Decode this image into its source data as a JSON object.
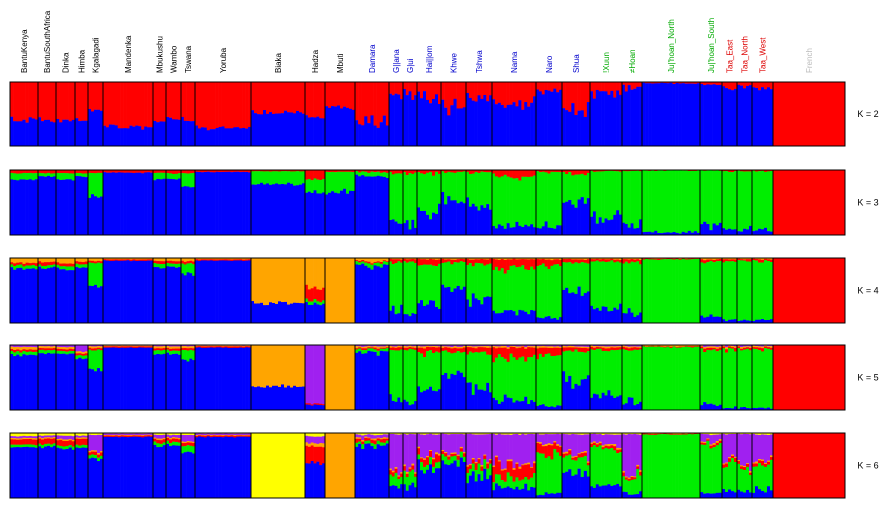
{
  "chart_data": {
    "type": "bar",
    "subtype": "stacked-admixture-proportions",
    "title": "",
    "xlabel": "",
    "ylabel": "",
    "ylim": [
      0,
      1
    ],
    "grid": false,
    "legend": "none",
    "populations": [
      {
        "name": "BantuKenya",
        "label_color": "#000000"
      },
      {
        "name": "BantuSouthAfrica",
        "label_color": "#000000"
      },
      {
        "name": "Dinka",
        "label_color": "#000000"
      },
      {
        "name": "Himba",
        "label_color": "#000000"
      },
      {
        "name": "Kgalagadi",
        "label_color": "#000000"
      },
      {
        "name": "Mandenka",
        "label_color": "#000000"
      },
      {
        "name": "Mbukushu",
        "label_color": "#000000"
      },
      {
        "name": "Wambo",
        "label_color": "#000000"
      },
      {
        "name": "Tswana",
        "label_color": "#000000"
      },
      {
        "name": "Yoruba",
        "label_color": "#000000"
      },
      {
        "name": "Biaka",
        "label_color": "#000000"
      },
      {
        "name": "Hadza",
        "label_color": "#000000"
      },
      {
        "name": "Mbuti",
        "label_color": "#000000"
      },
      {
        "name": "Damara",
        "label_color": "#0000cc"
      },
      {
        "name": "G||ana",
        "label_color": "#0000cc"
      },
      {
        "name": "G|ui",
        "label_color": "#0000cc"
      },
      {
        "name": "Hai||om",
        "label_color": "#0000cc"
      },
      {
        "name": "Khwe",
        "label_color": "#0000cc"
      },
      {
        "name": "Tshwa",
        "label_color": "#0000cc"
      },
      {
        "name": "Nama",
        "label_color": "#0000cc"
      },
      {
        "name": "Naro",
        "label_color": "#0000cc"
      },
      {
        "name": "Shua",
        "label_color": "#0000cc"
      },
      {
        "name": "!Xuun",
        "label_color": "#00aa00"
      },
      {
        "name": "≠Hoan",
        "label_color": "#00aa00"
      },
      {
        "name": "Ju|'hoan_North",
        "label_color": "#00aa00"
      },
      {
        "name": "Ju|'hoan_South",
        "label_color": "#00aa00"
      },
      {
        "name": "Taa_East",
        "label_color": "#dd0000"
      },
      {
        "name": "Taa_North",
        "label_color": "#dd0000"
      },
      {
        "name": "Taa_West",
        "label_color": "#dd0000"
      },
      {
        "name": "French",
        "label_color": "#bbbbbb"
      }
    ],
    "cluster_colors": {
      "blue": "#0000ff",
      "red": "#ff0000",
      "green": "#00ee00",
      "orange": "#ffa500",
      "purple": "#a020f0",
      "yellow": "#ffff00"
    },
    "panels": [
      {
        "k_label": "K = 2",
        "clusters": [
          "red",
          "blue"
        ],
        "pop_values": [
          [
            0.6,
            0.4
          ],
          [
            0.6,
            0.4
          ],
          [
            0.62,
            0.38
          ],
          [
            0.6,
            0.4
          ],
          [
            0.45,
            0.55
          ],
          [
            0.7,
            0.3
          ],
          [
            0.62,
            0.38
          ],
          [
            0.55,
            0.45
          ],
          [
            0.6,
            0.4
          ],
          [
            0.72,
            0.28
          ],
          [
            0.48,
            0.52
          ],
          [
            0.55,
            0.45
          ],
          [
            0.4,
            0.6
          ],
          [
            0.65,
            0.35
          ],
          [
            0.2,
            0.8
          ],
          [
            0.2,
            0.8
          ],
          [
            0.25,
            0.75
          ],
          [
            0.4,
            0.6
          ],
          [
            0.25,
            0.75
          ],
          [
            0.35,
            0.65
          ],
          [
            0.15,
            0.85
          ],
          [
            0.45,
            0.55
          ],
          [
            0.15,
            0.85
          ],
          [
            0.08,
            0.92
          ],
          [
            0.02,
            0.98
          ],
          [
            0.05,
            0.95
          ],
          [
            0.1,
            0.9
          ],
          [
            0.06,
            0.94
          ],
          [
            0.1,
            0.9
          ],
          [
            1.0,
            0.0
          ]
        ]
      },
      {
        "k_label": "K = 3",
        "clusters": [
          "red",
          "green",
          "blue"
        ],
        "pop_values": [
          [
            0.05,
            0.1,
            0.85
          ],
          [
            0.05,
            0.05,
            0.9
          ],
          [
            0.05,
            0.1,
            0.85
          ],
          [
            0.05,
            0.05,
            0.9
          ],
          [
            0.05,
            0.35,
            0.6
          ],
          [
            0.04,
            0.0,
            0.96
          ],
          [
            0.05,
            0.1,
            0.85
          ],
          [
            0.05,
            0.08,
            0.87
          ],
          [
            0.05,
            0.2,
            0.75
          ],
          [
            0.03,
            0.0,
            0.97
          ],
          [
            0.02,
            0.2,
            0.78
          ],
          [
            0.15,
            0.2,
            0.65
          ],
          [
            0.03,
            0.3,
            0.67
          ],
          [
            0.03,
            0.06,
            0.91
          ],
          [
            0.05,
            0.75,
            0.2
          ],
          [
            0.05,
            0.8,
            0.15
          ],
          [
            0.05,
            0.6,
            0.35
          ],
          [
            0.03,
            0.4,
            0.57
          ],
          [
            0.04,
            0.5,
            0.46
          ],
          [
            0.1,
            0.75,
            0.15
          ],
          [
            0.03,
            0.85,
            0.12
          ],
          [
            0.05,
            0.45,
            0.5
          ],
          [
            0.02,
            0.7,
            0.28
          ],
          [
            0.02,
            0.8,
            0.18
          ],
          [
            0.01,
            0.95,
            0.04
          ],
          [
            0.01,
            0.85,
            0.14
          ],
          [
            0.02,
            0.9,
            0.08
          ],
          [
            0.02,
            0.9,
            0.08
          ],
          [
            0.02,
            0.9,
            0.08
          ],
          [
            1.0,
            0.0,
            0.0
          ]
        ]
      },
      {
        "k_label": "K = 4",
        "clusters": [
          "orange",
          "red",
          "green",
          "blue"
        ],
        "pop_values": [
          [
            0.08,
            0.04,
            0.05,
            0.83
          ],
          [
            0.06,
            0.05,
            0.04,
            0.85
          ],
          [
            0.08,
            0.04,
            0.05,
            0.83
          ],
          [
            0.06,
            0.04,
            0.05,
            0.85
          ],
          [
            0.05,
            0.03,
            0.35,
            0.57
          ],
          [
            0.02,
            0.02,
            0.0,
            0.96
          ],
          [
            0.05,
            0.04,
            0.06,
            0.85
          ],
          [
            0.05,
            0.04,
            0.05,
            0.86
          ],
          [
            0.05,
            0.04,
            0.15,
            0.76
          ],
          [
            0.02,
            0.02,
            0.0,
            0.96
          ],
          [
            0.7,
            0.0,
            0.0,
            0.3
          ],
          [
            0.45,
            0.2,
            0.05,
            0.3
          ],
          [
            1.0,
            0.0,
            0.0,
            0.0
          ],
          [
            0.05,
            0.02,
            0.05,
            0.88
          ],
          [
            0.02,
            0.05,
            0.75,
            0.18
          ],
          [
            0.02,
            0.05,
            0.8,
            0.13
          ],
          [
            0.02,
            0.08,
            0.6,
            0.3
          ],
          [
            0.02,
            0.05,
            0.35,
            0.58
          ],
          [
            0.02,
            0.08,
            0.55,
            0.35
          ],
          [
            0.02,
            0.15,
            0.65,
            0.18
          ],
          [
            0.02,
            0.1,
            0.8,
            0.08
          ],
          [
            0.02,
            0.05,
            0.45,
            0.48
          ],
          [
            0.02,
            0.04,
            0.7,
            0.24
          ],
          [
            0.02,
            0.04,
            0.8,
            0.14
          ],
          [
            0.01,
            0.01,
            0.98,
            0.0
          ],
          [
            0.02,
            0.03,
            0.85,
            0.1
          ],
          [
            0.02,
            0.03,
            0.9,
            0.05
          ],
          [
            0.02,
            0.03,
            0.9,
            0.05
          ],
          [
            0.02,
            0.03,
            0.9,
            0.05
          ],
          [
            0.0,
            1.0,
            0.0,
            0.0
          ]
        ]
      },
      {
        "k_label": "K = 5",
        "clusters": [
          "purple",
          "orange",
          "red",
          "green",
          "blue"
        ],
        "pop_values": [
          [
            0.03,
            0.04,
            0.03,
            0.05,
            0.85
          ],
          [
            0.02,
            0.03,
            0.03,
            0.05,
            0.87
          ],
          [
            0.03,
            0.03,
            0.03,
            0.04,
            0.87
          ],
          [
            0.1,
            0.03,
            0.03,
            0.05,
            0.79
          ],
          [
            0.02,
            0.03,
            0.03,
            0.3,
            0.62
          ],
          [
            0.01,
            0.01,
            0.02,
            0.0,
            0.96
          ],
          [
            0.02,
            0.03,
            0.03,
            0.06,
            0.86
          ],
          [
            0.02,
            0.03,
            0.03,
            0.05,
            0.87
          ],
          [
            0.02,
            0.03,
            0.03,
            0.15,
            0.77
          ],
          [
            0.01,
            0.01,
            0.02,
            0.0,
            0.96
          ],
          [
            0.0,
            0.65,
            0.0,
            0.0,
            0.35
          ],
          [
            0.9,
            0.0,
            0.02,
            0.0,
            0.08
          ],
          [
            0.0,
            1.0,
            0.0,
            0.0,
            0.0
          ],
          [
            0.02,
            0.02,
            0.02,
            0.05,
            0.89
          ],
          [
            0.02,
            0.02,
            0.04,
            0.75,
            0.17
          ],
          [
            0.02,
            0.02,
            0.04,
            0.8,
            0.12
          ],
          [
            0.02,
            0.02,
            0.08,
            0.55,
            0.33
          ],
          [
            0.02,
            0.02,
            0.05,
            0.35,
            0.56
          ],
          [
            0.02,
            0.02,
            0.08,
            0.55,
            0.33
          ],
          [
            0.02,
            0.02,
            0.15,
            0.65,
            0.16
          ],
          [
            0.02,
            0.02,
            0.1,
            0.8,
            0.06
          ],
          [
            0.02,
            0.02,
            0.05,
            0.45,
            0.46
          ],
          [
            0.02,
            0.02,
            0.04,
            0.7,
            0.22
          ],
          [
            0.02,
            0.02,
            0.04,
            0.8,
            0.12
          ],
          [
            0.0,
            0.02,
            0.01,
            0.97,
            0.0
          ],
          [
            0.02,
            0.02,
            0.03,
            0.85,
            0.08
          ],
          [
            0.02,
            0.02,
            0.03,
            0.9,
            0.03
          ],
          [
            0.02,
            0.02,
            0.03,
            0.9,
            0.03
          ],
          [
            0.02,
            0.02,
            0.03,
            0.9,
            0.03
          ],
          [
            0.0,
            0.0,
            1.0,
            0.0,
            0.0
          ]
        ]
      },
      {
        "k_label": "K = 6",
        "clusters": [
          "yellow",
          "purple",
          "orange",
          "red",
          "green",
          "blue"
        ],
        "pop_values": [
          [
            0.05,
            0.03,
            0.02,
            0.08,
            0.04,
            0.78
          ],
          [
            0.04,
            0.03,
            0.02,
            0.08,
            0.04,
            0.79
          ],
          [
            0.04,
            0.05,
            0.02,
            0.08,
            0.04,
            0.77
          ],
          [
            0.04,
            0.03,
            0.02,
            0.1,
            0.04,
            0.77
          ],
          [
            0.03,
            0.25,
            0.02,
            0.05,
            0.05,
            0.6
          ],
          [
            0.01,
            0.02,
            0.01,
            0.02,
            0.0,
            0.94
          ],
          [
            0.03,
            0.05,
            0.02,
            0.05,
            0.05,
            0.8
          ],
          [
            0.03,
            0.04,
            0.02,
            0.05,
            0.05,
            0.81
          ],
          [
            0.03,
            0.1,
            0.02,
            0.05,
            0.1,
            0.7
          ],
          [
            0.01,
            0.02,
            0.01,
            0.02,
            0.0,
            0.94
          ],
          [
            1.0,
            0.0,
            0.0,
            0.0,
            0.0,
            0.0
          ],
          [
            0.05,
            0.1,
            0.05,
            0.25,
            0.0,
            0.55
          ],
          [
            0.0,
            0.0,
            1.0,
            0.0,
            0.0,
            0.0
          ],
          [
            0.03,
            0.05,
            0.02,
            0.05,
            0.05,
            0.8
          ],
          [
            0.02,
            0.6,
            0.02,
            0.05,
            0.15,
            0.16
          ],
          [
            0.02,
            0.55,
            0.02,
            0.05,
            0.2,
            0.16
          ],
          [
            0.02,
            0.3,
            0.02,
            0.08,
            0.1,
            0.48
          ],
          [
            0.02,
            0.25,
            0.02,
            0.05,
            0.1,
            0.56
          ],
          [
            0.02,
            0.4,
            0.02,
            0.08,
            0.15,
            0.33
          ],
          [
            0.02,
            0.45,
            0.02,
            0.2,
            0.15,
            0.16
          ],
          [
            0.02,
            0.15,
            0.02,
            0.15,
            0.6,
            0.06
          ],
          [
            0.02,
            0.3,
            0.02,
            0.05,
            0.2,
            0.41
          ],
          [
            0.02,
            0.15,
            0.02,
            0.04,
            0.6,
            0.17
          ],
          [
            0.02,
            0.6,
            0.02,
            0.04,
            0.25,
            0.07
          ],
          [
            0.0,
            0.0,
            0.01,
            0.01,
            0.98,
            0.0
          ],
          [
            0.02,
            0.1,
            0.02,
            0.03,
            0.75,
            0.08
          ],
          [
            0.02,
            0.4,
            0.02,
            0.05,
            0.4,
            0.11
          ],
          [
            0.02,
            0.45,
            0.02,
            0.05,
            0.35,
            0.11
          ],
          [
            0.02,
            0.45,
            0.02,
            0.05,
            0.35,
            0.11
          ],
          [
            0.0,
            0.0,
            0.0,
            1.0,
            0.0,
            0.0
          ]
        ]
      }
    ]
  }
}
